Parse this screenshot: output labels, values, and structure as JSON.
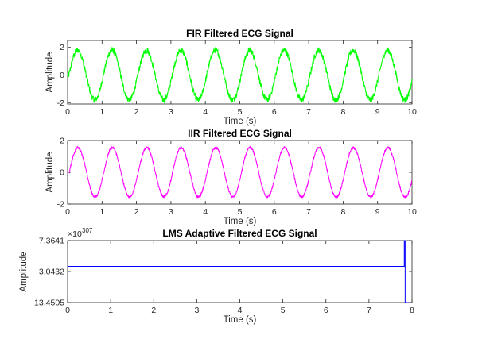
{
  "chart_data": [
    {
      "type": "line",
      "title": "FIR Filtered ECG Signal",
      "xlabel": "Time (s)",
      "ylabel": "Amplitude",
      "xlim": [
        0,
        10
      ],
      "ylim": [
        -2.1,
        2.5
      ],
      "xticks": [
        0,
        1,
        2,
        3,
        4,
        5,
        6,
        7,
        8,
        9,
        10
      ],
      "yticks": [
        -2,
        0,
        2
      ],
      "xtick_labels": [
        "0",
        "1",
        "2",
        "3",
        "4",
        "5",
        "6",
        "7",
        "8",
        "9",
        "10"
      ],
      "ytick_labels": [
        "-2",
        "0",
        "2"
      ],
      "color": "#00ff00",
      "signal": {
        "frequency_hz": 1.0,
        "amplitude": 1.8,
        "noise": 0.22,
        "delay_s": 0.04
      },
      "x": [
        0,
        0.25,
        0.5,
        0.75,
        1,
        1.25,
        1.5,
        1.75,
        2,
        2.25,
        2.5,
        2.75,
        3,
        3.25,
        3.5,
        3.75,
        4,
        4.25,
        4.5,
        4.75,
        5,
        5.25,
        5.5,
        5.75,
        6,
        6.25,
        6.5,
        6.75,
        7,
        7.25,
        7.5,
        7.75,
        8,
        8.25,
        8.5,
        8.75,
        9,
        9.25,
        9.5,
        9.75,
        10
      ],
      "y": [
        0,
        1.8,
        0,
        -1.8,
        0,
        1.8,
        0,
        -1.8,
        0,
        1.8,
        0,
        -1.8,
        0,
        1.8,
        0,
        -1.8,
        0,
        1.8,
        0,
        -1.8,
        0,
        1.8,
        0,
        -1.8,
        0,
        1.8,
        0,
        -1.8,
        0,
        1.8,
        0,
        -1.8,
        0,
        1.8,
        0,
        -1.8,
        0,
        1.8,
        0,
        -1.8,
        0
      ]
    },
    {
      "type": "line",
      "title": "IIR Filtered ECG Signal",
      "xlabel": "Time (s)",
      "ylabel": "Amplitude",
      "xlim": [
        0,
        10
      ],
      "ylim": [
        -2,
        2
      ],
      "xticks": [
        0,
        1,
        2,
        3,
        4,
        5,
        6,
        7,
        8,
        9,
        10
      ],
      "yticks": [
        -2,
        0,
        2
      ],
      "xtick_labels": [
        "0",
        "1",
        "2",
        "3",
        "4",
        "5",
        "6",
        "7",
        "8",
        "9",
        "10"
      ],
      "ytick_labels": [
        "-2",
        "0",
        "2"
      ],
      "color": "#ff00ff",
      "signal": {
        "frequency_hz": 1.0,
        "amplitude": 1.55,
        "noise": 0.07,
        "delay_s": 0.05
      },
      "x": [
        0,
        0.25,
        0.5,
        0.75,
        1,
        1.25,
        1.5,
        1.75,
        2,
        2.25,
        2.5,
        2.75,
        3,
        3.25,
        3.5,
        3.75,
        4,
        4.25,
        4.5,
        4.75,
        5,
        5.25,
        5.5,
        5.75,
        6,
        6.25,
        6.5,
        6.75,
        7,
        7.25,
        7.5,
        7.75,
        8,
        8.25,
        8.5,
        8.75,
        9,
        9.25,
        9.5,
        9.75,
        10
      ],
      "y": [
        0,
        1.6,
        0,
        -1.5,
        0,
        1.6,
        0,
        -1.5,
        0,
        1.7,
        0,
        -1.5,
        0,
        1.6,
        0,
        -1.5,
        0,
        1.6,
        0,
        -1.5,
        0,
        1.6,
        0,
        -1.5,
        0,
        1.6,
        0,
        -1.5,
        0,
        1.6,
        0,
        -1.5,
        0,
        1.6,
        0,
        -1.5,
        0,
        1.6,
        0,
        -1.5,
        0
      ]
    },
    {
      "type": "line",
      "title": "LMS Adaptive Filtered ECG Signal",
      "xlabel": "Time (s)",
      "ylabel": "Amplitude",
      "xlim": [
        0,
        8
      ],
      "ylim": [
        -13.4505,
        7.3641
      ],
      "exponent_label": "×10",
      "exponent_value": "307",
      "xticks": [
        0,
        1,
        2,
        3,
        4,
        5,
        6,
        7,
        8
      ],
      "yticks": [
        -13.4505,
        -3.0432,
        7.3641
      ],
      "xtick_labels": [
        "0",
        "1",
        "2",
        "3",
        "4",
        "5",
        "6",
        "7",
        "8"
      ],
      "ytick_labels": [
        "-13.4505",
        "-3.0432",
        "7.3641"
      ],
      "color": "#0000ff",
      "x": [
        0,
        7.82,
        7.82,
        7.84,
        7.84,
        8
      ],
      "y": [
        -1.3,
        -1.3,
        7.3641,
        7.3641,
        -13.4505,
        -13.4505
      ]
    }
  ]
}
